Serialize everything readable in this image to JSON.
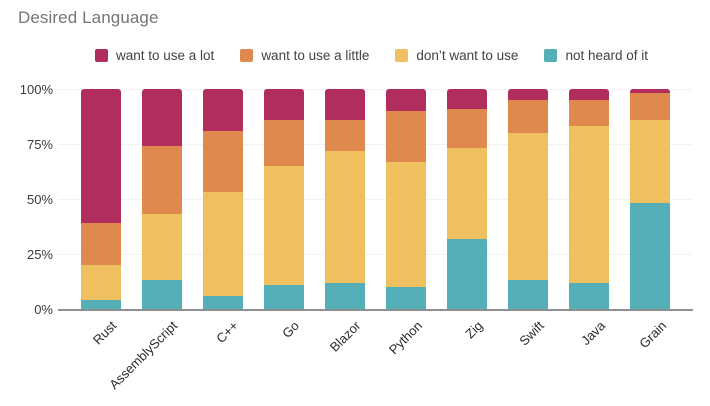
{
  "title": "Desired Language",
  "legend_position": "top",
  "y_axis": {
    "tick_labels": [
      "100%",
      "75%",
      "50%",
      "25%",
      "0%"
    ],
    "tick_values": [
      100,
      75,
      50,
      25,
      0
    ]
  },
  "colors": {
    "title_text": "#757575",
    "axis_text": "#3b3b3b",
    "gridline": "#f2f2f2",
    "axis_line": "#8f8f8f"
  },
  "chart_data": {
    "type": "bar",
    "subtype": "stacked-percent-column",
    "title": "Desired Language",
    "xlabel": "",
    "ylabel": "",
    "ylim": [
      0,
      100
    ],
    "grid": true,
    "legend_position": "top",
    "categories": [
      "Rust",
      "AssemblyScript",
      "C++",
      "Go",
      "Blazor",
      "Python",
      "Zig",
      "Swift",
      "Java",
      "Grain"
    ],
    "series": [
      {
        "name": "want to use a lot",
        "color": "#b12d5e",
        "values": [
          61,
          26,
          19,
          14,
          14,
          10,
          9,
          5,
          5,
          2
        ]
      },
      {
        "name": "want to use a little",
        "color": "#e0894f",
        "values": [
          19,
          31,
          28,
          21,
          14,
          23,
          18,
          15,
          12,
          12
        ]
      },
      {
        "name": "don’t want to use",
        "color": "#eec05f",
        "values": [
          16,
          30,
          47,
          54,
          60,
          57,
          41,
          67,
          71,
          38
        ]
      },
      {
        "name": "not heard of it",
        "color": "#55afb9",
        "values": [
          4,
          13,
          6,
          11,
          12,
          10,
          32,
          13,
          12,
          48
        ]
      }
    ],
    "stack_order_bottom_to_top": [
      "not heard of it",
      "don’t want to use",
      "want to use a little",
      "want to use a lot"
    ]
  }
}
